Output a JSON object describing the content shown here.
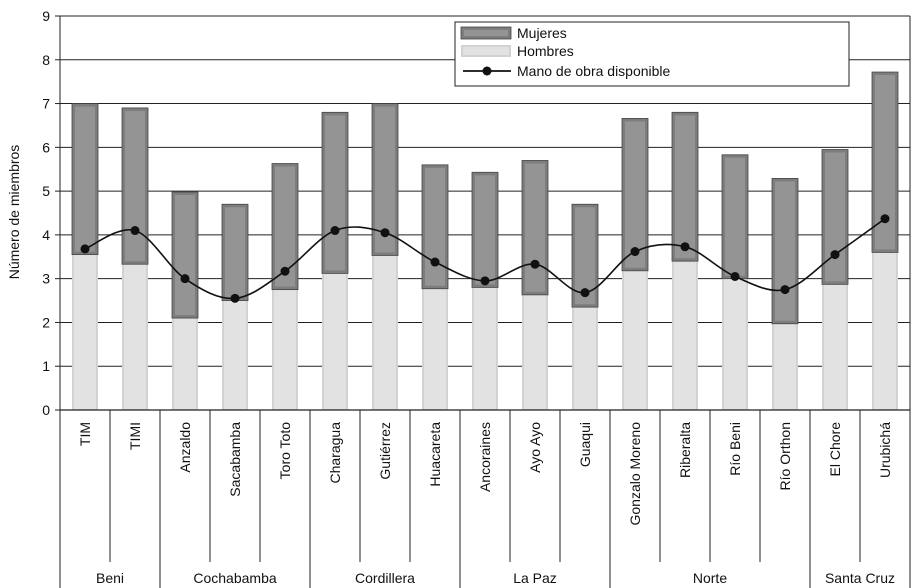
{
  "chart_data": {
    "type": "bar",
    "stacked": true,
    "ylabel": "Número de miembros",
    "ylim": [
      0,
      9
    ],
    "yticks": [
      0,
      1,
      2,
      3,
      4,
      5,
      6,
      7,
      8,
      9
    ],
    "grid": true,
    "legend_position": "top-right",
    "categories": [
      "TIM",
      "TIMI",
      "Anzaldo",
      "Sacabamba",
      "Toro Toto",
      "Charagua",
      "Gutiérrez",
      "Huacareta",
      "Ancoraines",
      "Ayo Ayo",
      "Guaqui",
      "Gonzalo Moreno",
      "Riberalta",
      "Río Beni",
      "Río Orthon",
      "El Chore",
      "Urubichá"
    ],
    "groups": [
      {
        "name": "Beni",
        "count": 2
      },
      {
        "name": "Cochabamba",
        "count": 3
      },
      {
        "name": "Cordillera",
        "count": 3
      },
      {
        "name": "La Paz",
        "count": 3
      },
      {
        "name": "Norte",
        "count": 4
      },
      {
        "name": "Santa Cruz",
        "count": 2
      }
    ],
    "series": [
      {
        "name": "Hombres",
        "kind": "bar",
        "color": "#d2d2d2",
        "values": [
          3.55,
          3.33,
          2.1,
          2.5,
          2.75,
          3.12,
          3.53,
          2.77,
          2.8,
          2.63,
          2.35,
          3.18,
          3.4,
          3.0,
          1.97,
          2.87,
          3.6
        ]
      },
      {
        "name": "Mujeres",
        "kind": "bar",
        "color": "#7d7d7d",
        "values": [
          3.45,
          3.57,
          2.88,
          2.2,
          2.88,
          3.68,
          3.47,
          2.83,
          2.63,
          3.07,
          2.35,
          3.48,
          3.4,
          2.83,
          3.32,
          3.08,
          4.12
        ]
      },
      {
        "name": "Mano de obra disponible",
        "kind": "line",
        "color": "#111111",
        "values": [
          3.68,
          4.1,
          3.0,
          2.55,
          3.17,
          4.1,
          4.05,
          3.38,
          2.95,
          3.33,
          2.68,
          3.62,
          3.73,
          3.05,
          2.75,
          3.55,
          4.37
        ]
      }
    ]
  }
}
